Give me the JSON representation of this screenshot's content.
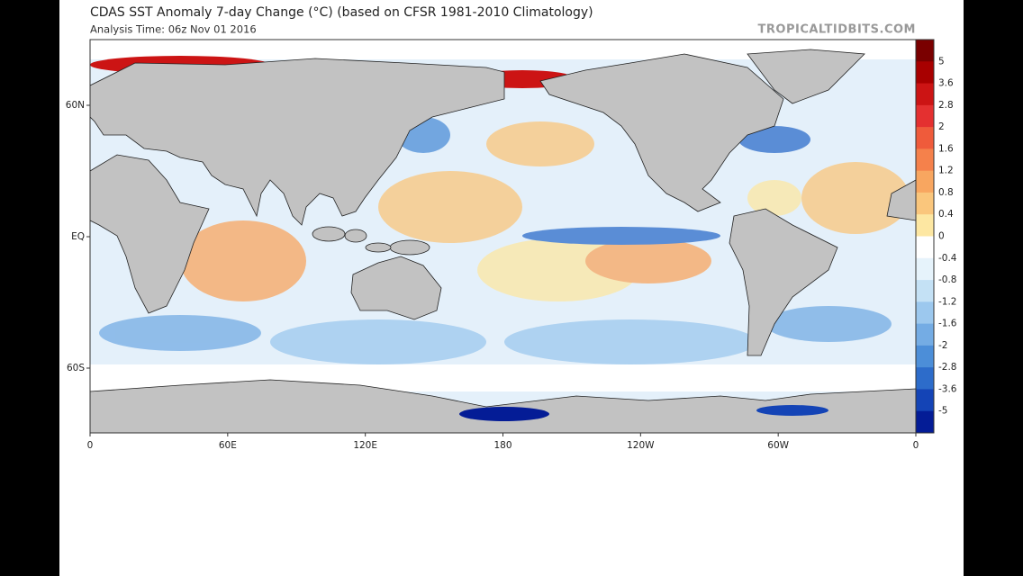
{
  "header": {
    "title": "CDAS SST Anomaly 7-day Change (°C) (based on CFSR 1981-2010 Climatology)",
    "subtitle": "Analysis Time: 06z Nov 01 2016",
    "watermark": "TROPICALTIDBITS.COM"
  },
  "map": {
    "lon_labels": [
      "0",
      "60E",
      "120E",
      "180",
      "120W",
      "60W",
      "0"
    ],
    "lat_labels": [
      "60N",
      "EQ",
      "60S"
    ]
  },
  "colorbar": {
    "labels": [
      "5",
      "3.6",
      "2.8",
      "2",
      "1.6",
      "1.2",
      "0.8",
      "0.4",
      "0",
      "-0.4",
      "-0.8",
      "-1.2",
      "-1.6",
      "-2",
      "-2.8",
      "-3.6",
      "-5"
    ],
    "colors": [
      "#7a0000",
      "#a80000",
      "#cc1414",
      "#e43030",
      "#ef5b3b",
      "#f5814b",
      "#f8a660",
      "#fac67c",
      "#fde7a2",
      "#ffffff",
      "#e6f3fb",
      "#c4e1f5",
      "#9cc8ee",
      "#74ace4",
      "#4c8ed8",
      "#2d6cca",
      "#1444b6",
      "#041c96"
    ]
  }
}
